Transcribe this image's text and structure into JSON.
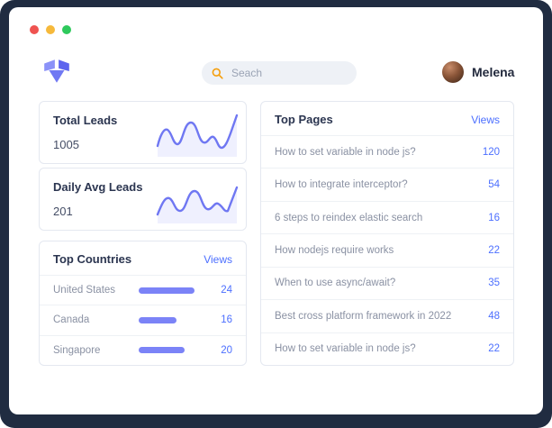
{
  "window": {
    "traffic_lights": {
      "close": "#ef5350",
      "minimize": "#f6b93b",
      "maximize": "#2ec95c"
    }
  },
  "header": {
    "search_placeholder": "Seach",
    "user_name": "Melena"
  },
  "stat_cards": [
    {
      "title": "Total Leads",
      "value": "1005"
    },
    {
      "title": "Daily Avg Leads",
      "value": "201"
    }
  ],
  "top_countries": {
    "title": "Top Countries",
    "views_label": "Views",
    "rows": [
      {
        "name": "United States",
        "views": 24
      },
      {
        "name": "Canada",
        "views": 16
      },
      {
        "name": "Singapore",
        "views": 20
      }
    ]
  },
  "top_pages": {
    "title": "Top Pages",
    "views_label": "Views",
    "rows": [
      {
        "title": "How to set variable in node js?",
        "views": 120
      },
      {
        "title": "How to integrate interceptor?",
        "views": 54
      },
      {
        "title": "6 steps to reindex elastic search",
        "views": 16
      },
      {
        "title": "How nodejs require works",
        "views": 22
      },
      {
        "title": "When to use async/await?",
        "views": 35
      },
      {
        "title": "Best cross platform framework in 2022",
        "views": 48
      },
      {
        "title": "How to set variable in node js?",
        "views": 22
      }
    ]
  },
  "colors": {
    "accent": "#7b83f7",
    "link": "#4c6fff",
    "frame": "#202c41",
    "search_icon": "#f59e0b"
  }
}
